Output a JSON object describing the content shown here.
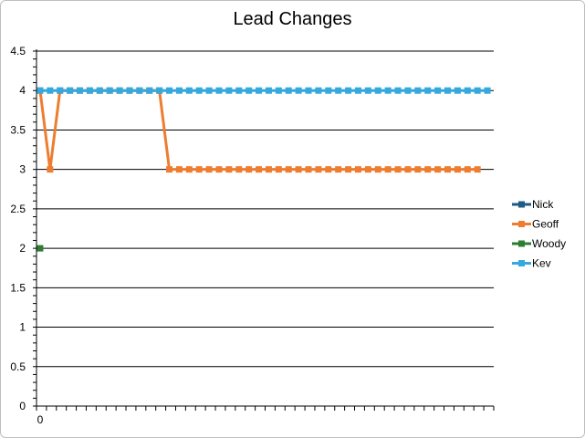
{
  "chart_data": {
    "type": "line",
    "title": "Lead Changes",
    "xlabel": "",
    "ylabel": "",
    "x_tick_labels_shown": [
      "0"
    ],
    "ylim": [
      0,
      4.5
    ],
    "yticks": [
      0,
      0.5,
      1,
      1.5,
      2,
      2.5,
      3,
      3.5,
      4,
      4.5
    ],
    "n_x_positions": 46,
    "gridlines": "horizontal",
    "legend_position": "right",
    "series": [
      {
        "name": "Nick",
        "color": "#1f5b86",
        "values": []
      },
      {
        "name": "Geoff",
        "color": "#ed7d31",
        "values": [
          4,
          3,
          4,
          4,
          4,
          4,
          4,
          4,
          4,
          4,
          4,
          4,
          4,
          3,
          3,
          3,
          3,
          3,
          3,
          3,
          3,
          3,
          3,
          3,
          3,
          3,
          3,
          3,
          3,
          3,
          3,
          3,
          3,
          3,
          3,
          3,
          3,
          3,
          3,
          3,
          3,
          3,
          3,
          3,
          3
        ]
      },
      {
        "name": "Woody",
        "color": "#2e7d32",
        "values": [
          2
        ]
      },
      {
        "name": "Kev",
        "color": "#35a9dd",
        "values": [
          4,
          4,
          4,
          4,
          4,
          4,
          4,
          4,
          4,
          4,
          4,
          4,
          4,
          4,
          4,
          4,
          4,
          4,
          4,
          4,
          4,
          4,
          4,
          4,
          4,
          4,
          4,
          4,
          4,
          4,
          4,
          4,
          4,
          4,
          4,
          4,
          4,
          4,
          4,
          4,
          4,
          4,
          4,
          4,
          4,
          4
        ]
      }
    ]
  }
}
